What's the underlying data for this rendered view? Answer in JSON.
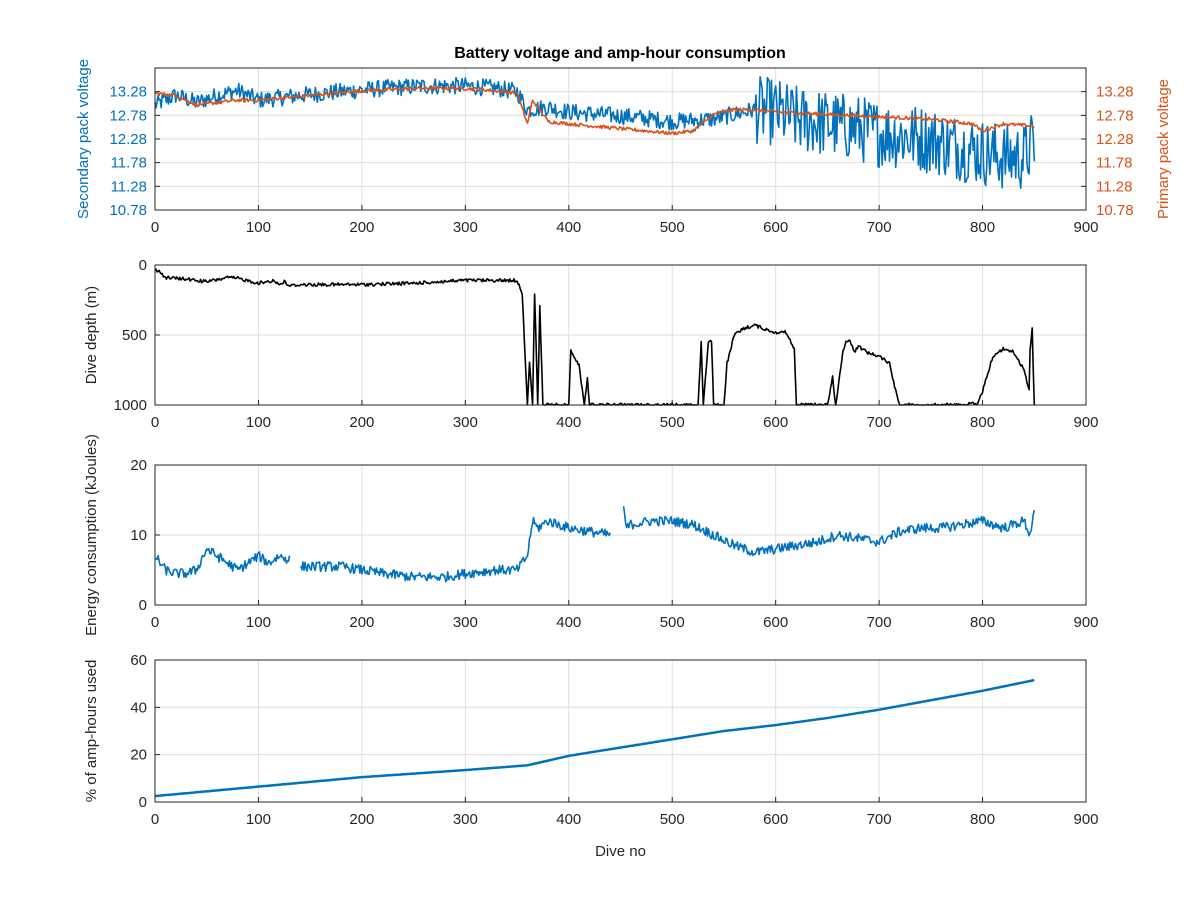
{
  "figure_title": "Battery voltage and amp-hour consumption",
  "colors": {
    "blue": "#0072BD",
    "orange": "#D95319",
    "black": "#000000",
    "grid": "#dedede",
    "axis": "#262626"
  },
  "chart_data": [
    {
      "type": "line",
      "title": "Battery voltage and amp-hour consumption",
      "xlabel": "",
      "ylabel": "Secondary pack voltage",
      "ylabel_right": "Primary pack voltage",
      "xlim": [
        0,
        900
      ],
      "ylim": [
        10.78,
        13.78
      ],
      "ylim_right": [
        10.78,
        13.78
      ],
      "xticks": [
        "0",
        "100",
        "200",
        "300",
        "400",
        "500",
        "600",
        "700",
        "800",
        "900"
      ],
      "yticks": [
        "10.78",
        "11.28",
        "11.78",
        "12.28",
        "12.78",
        "13.28"
      ],
      "yticks_right": [
        "10.78",
        "11.28",
        "11.78",
        "12.28",
        "12.78",
        "13.28"
      ],
      "grid": true,
      "series": [
        {
          "axis": "left",
          "color": "#0072BD",
          "noise": "high",
          "x": [
            0,
            20,
            40,
            60,
            80,
            100,
            140,
            180,
            220,
            260,
            300,
            330,
            350,
            360,
            380,
            400,
            430,
            460,
            500,
            540,
            560,
            580,
            600,
            620,
            650,
            680,
            700,
            720,
            740,
            760,
            780,
            800,
            820,
            840,
            850
          ],
          "y": [
            13.0,
            13.2,
            13.05,
            13.2,
            13.3,
            13.1,
            13.2,
            13.28,
            13.35,
            13.4,
            13.4,
            13.35,
            13.28,
            12.9,
            12.95,
            12.85,
            12.8,
            12.75,
            12.65,
            12.7,
            12.8,
            12.9,
            12.85,
            12.7,
            12.6,
            12.5,
            12.4,
            12.35,
            12.3,
            12.2,
            12.1,
            12.0,
            11.9,
            11.9,
            12.2
          ]
        },
        {
          "axis": "right",
          "color": "#D95319",
          "noise": "low",
          "x": [
            0,
            20,
            40,
            60,
            80,
            100,
            150,
            200,
            250,
            300,
            330,
            350,
            360,
            365,
            380,
            400,
            450,
            500,
            520,
            540,
            560,
            580,
            600,
            650,
            700,
            750,
            790,
            800,
            820,
            850
          ],
          "y": [
            13.25,
            13.2,
            13.0,
            13.05,
            13.1,
            13.1,
            13.2,
            13.3,
            13.35,
            13.35,
            13.3,
            13.25,
            12.6,
            13.1,
            12.65,
            12.6,
            12.5,
            12.4,
            12.45,
            12.8,
            12.9,
            12.9,
            12.85,
            12.8,
            12.75,
            12.7,
            12.6,
            12.45,
            12.6,
            12.55
          ]
        }
      ]
    },
    {
      "type": "line",
      "title": "",
      "xlabel": "",
      "ylabel": "Dive depth (m)",
      "xlim": [
        0,
        900
      ],
      "ylim": [
        0,
        1000
      ],
      "y_reversed": true,
      "xticks": [
        "0",
        "100",
        "200",
        "300",
        "400",
        "500",
        "600",
        "700",
        "800",
        "900"
      ],
      "yticks": [
        "0",
        "500",
        "1000"
      ],
      "grid": true,
      "series": [
        {
          "color": "#000000",
          "noise": "low",
          "x": [
            0,
            5,
            10,
            30,
            50,
            70,
            80,
            100,
            115,
            120,
            125,
            130,
            140,
            200,
            250,
            300,
            340,
            350,
            355,
            360,
            362,
            365,
            367,
            370,
            372,
            375,
            400,
            402,
            405,
            410,
            415,
            418,
            420,
            500,
            525,
            528,
            530,
            535,
            538,
            540,
            550,
            553,
            556,
            560,
            570,
            580,
            590,
            600,
            610,
            618,
            620,
            650,
            655,
            658,
            660,
            665,
            668,
            672,
            676,
            680,
            690,
            700,
            710,
            716,
            720,
            780,
            790,
            795,
            800,
            810,
            820,
            830,
            840,
            845,
            846,
            848,
            850
          ],
          "y": [
            30,
            50,
            90,
            100,
            120,
            90,
            95,
            130,
            110,
            140,
            120,
            150,
            140,
            140,
            130,
            110,
            110,
            110,
            200,
            1000,
            700,
            1000,
            200,
            1000,
            300,
            1000,
            1000,
            600,
            650,
            720,
            1000,
            800,
            1000,
            1000,
            1000,
            550,
            1000,
            550,
            550,
            1000,
            1000,
            700,
            620,
            500,
            450,
            430,
            460,
            480,
            480,
            600,
            1000,
            1000,
            800,
            1000,
            900,
            620,
            540,
            540,
            620,
            580,
            630,
            650,
            700,
            900,
            1000,
            1000,
            990,
            1000,
            900,
            650,
            600,
            620,
            750,
            900,
            600,
            450,
            1000
          ]
        }
      ]
    },
    {
      "type": "line",
      "title": "",
      "xlabel": "",
      "ylabel": "Energy consumption (kJoules)",
      "xlim": [
        0,
        900
      ],
      "ylim": [
        0,
        20
      ],
      "xticks": [
        "0",
        "100",
        "200",
        "300",
        "400",
        "500",
        "600",
        "700",
        "800",
        "900"
      ],
      "yticks": [
        "0",
        "10",
        "20"
      ],
      "grid": true,
      "series": [
        {
          "color": "#0072BD",
          "noise": "medium",
          "x": [
            0,
            10,
            20,
            30,
            40,
            50,
            60,
            70,
            80,
            90,
            100,
            110,
            120,
            130,
            135,
            140,
            180,
            200,
            220,
            250,
            280,
            300,
            330,
            350,
            360,
            365,
            370,
            380,
            400,
            420,
            440,
            450,
            452,
            455,
            460,
            480,
            500,
            520,
            540,
            560,
            580,
            600,
            620,
            640,
            660,
            680,
            700,
            720,
            740,
            760,
            780,
            800,
            820,
            840,
            846,
            850
          ],
          "y": [
            7,
            5,
            4.5,
            4.5,
            5,
            8,
            7,
            6,
            5,
            6,
            7,
            6,
            7,
            6.5,
            null,
            5.5,
            5.5,
            5,
            4.5,
            4,
            4,
            4.5,
            5,
            5,
            7,
            12,
            11,
            12,
            11,
            10.5,
            10,
            null,
            16,
            11,
            11.5,
            12,
            12,
            11.5,
            10,
            8.5,
            7.5,
            8,
            8.5,
            9,
            10,
            9.5,
            9,
            10.5,
            11,
            11,
            11.5,
            12,
            11,
            12,
            10,
            14
          ]
        }
      ]
    },
    {
      "type": "line",
      "title": "",
      "xlabel": "Dive no",
      "ylabel": "% of amp-hours used",
      "xlim": [
        0,
        900
      ],
      "ylim": [
        0,
        60
      ],
      "xticks": [
        "0",
        "100",
        "200",
        "300",
        "400",
        "500",
        "600",
        "700",
        "800",
        "900"
      ],
      "yticks": [
        "0",
        "20",
        "40",
        "60"
      ],
      "grid": true,
      "series": [
        {
          "color": "#0072BD",
          "noise": "none",
          "x": [
            0,
            100,
            200,
            300,
            360,
            400,
            450,
            500,
            550,
            600,
            650,
            700,
            750,
            800,
            850
          ],
          "y": [
            2.5,
            6.5,
            10.5,
            13.5,
            15.5,
            19.5,
            23,
            26.5,
            30,
            32.5,
            35.5,
            39,
            43,
            47,
            51.5
          ]
        }
      ]
    }
  ]
}
